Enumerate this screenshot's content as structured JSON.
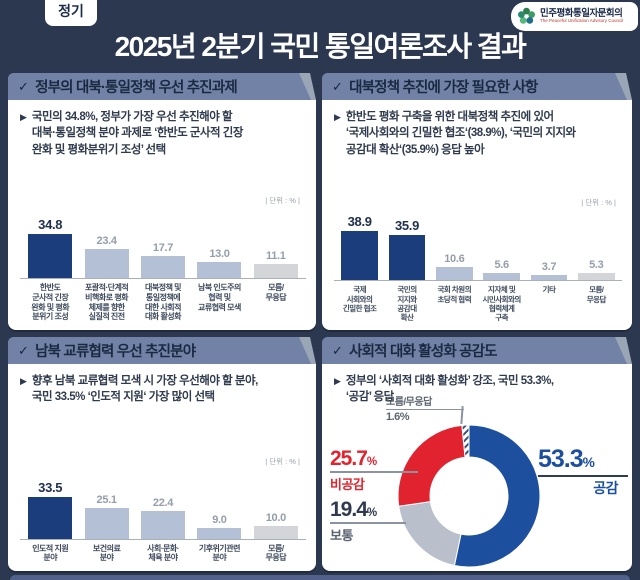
{
  "page": {
    "badge": "정기",
    "title": "2025년 2분기 국민 통일여론조사 결과",
    "logo_org": "민주평화통일자문회의",
    "logo_org_en": "The Peaceful Unification Advisory Council"
  },
  "colors": {
    "background": "#2b3850",
    "band": "#7182a6",
    "band_text": "#192941",
    "panel": "#ffffff",
    "bar_dark": "#1b3d7c",
    "bar_light": "#b4c0d5",
    "bar_muted": "#d3d5d9",
    "value_dark": "#20304d",
    "value_light": "#959daa",
    "donut_agree": "#1d4f9f",
    "donut_disagree": "#e0232e",
    "donut_neutral": "#b9c0cb",
    "hatch_line": "#3c4d72"
  },
  "panels": [
    {
      "title": "정부의 대북·통일정책 우선 추진과제",
      "body": "국민의 34.8%, 정부가 가장 우선 추진해야 할\n대북·통일정책 분야 과제로 ‘한반도 군사적 긴장\n완화 및 평화분위기 조성’ 선택",
      "unit": "| 단위 : % |"
    },
    {
      "title": "대북정책 추진에 가장 필요한 사항",
      "body": "한반도 평화 구축을 위한 대북정책 추진에 있어\n‘국제사회와의 긴밀한 협조‘(38.9%), ‘국민의 지지와\n공감대 확산‘(35.9%) 응답 높아",
      "unit": "| 단위 : % |"
    },
    {
      "title": "남북 교류협력 우선 추진분야",
      "body": "향후 남북 교류협력 모색 시 가장 우선해야 할 분야,\n국민 33.5% ‘인도적 지원‘ 가장 많이 선택",
      "unit": "| 단위 : % |"
    },
    {
      "title": "사회적 대화 활성화 공감도",
      "body": "정부의 ‘사회적 대화 활성화’ 강조, 국민 53.3%,\n‘공감’ 응답"
    }
  ],
  "chart_data": [
    {
      "type": "bar",
      "title": "정부의 대북·통일정책 우선 추진과제",
      "unit": "%",
      "categories": [
        "한반도\n군사적 긴장\n완화 및 평화\n분위기 조성",
        "포괄적·단계적\n비핵화로 평화\n체제를 향한\n실질적 진전",
        "대북정책 및\n통일정책에\n대한 사회적\n대화 활성화",
        "남북 인도주의\n협력 및\n교류협력 모색",
        "모름/\n무응답"
      ],
      "values": [
        34.8,
        23.4,
        17.7,
        13.0,
        11.1
      ],
      "styles": [
        "dark",
        "light",
        "light",
        "light",
        "muted"
      ]
    },
    {
      "type": "bar",
      "title": "대북정책 추진에 가장 필요한 사항",
      "unit": "%",
      "categories": [
        "국제\n사회와의\n긴밀한 협조",
        "국민의\n지지와\n공감대\n확산",
        "국회 차원의\n초당적 협력",
        "지자체 및\n시민사회와의\n협력체계\n구축",
        "기타",
        "모름/\n무응답"
      ],
      "values": [
        38.9,
        35.9,
        10.6,
        5.6,
        3.7,
        5.3
      ],
      "styles": [
        "dark",
        "dark",
        "light",
        "light",
        "light",
        "muted"
      ]
    },
    {
      "type": "bar",
      "title": "남북 교류협력 우선 추진분야",
      "unit": "%",
      "categories": [
        "인도적 지원\n분야",
        "보건의료\n분야",
        "사회·문화·\n체육 분야",
        "기후위기관련\n분야",
        "모름/\n무응답"
      ],
      "values": [
        33.5,
        25.1,
        22.4,
        9.0,
        10.0
      ],
      "styles": [
        "dark",
        "light",
        "light",
        "light",
        "muted"
      ]
    },
    {
      "type": "donut",
      "title": "사회적 대화 활성화 공감도",
      "start_angle_deg": -90,
      "direction": "clockwise",
      "slices": [
        {
          "label": "공감",
          "value": 53.3,
          "color": "#1d4f9f"
        },
        {
          "label": "보통",
          "value": 19.4,
          "color": "#b9c0cb"
        },
        {
          "label": "비공감",
          "value": 25.7,
          "color": "#e0232e"
        },
        {
          "label": "모름/무응답",
          "value": 1.6,
          "color": "hatch"
        }
      ],
      "labels": {
        "agree": {
          "value": "53.3",
          "suffix": "%",
          "label": "공감"
        },
        "disagree": {
          "value": "25.7",
          "suffix": "%",
          "label": "비공감"
        },
        "neutral": {
          "value": "19.4",
          "suffix": "%",
          "label": "보통"
        },
        "dk": {
          "label": "모름/무응답",
          "value": "1.6%"
        }
      }
    }
  ]
}
